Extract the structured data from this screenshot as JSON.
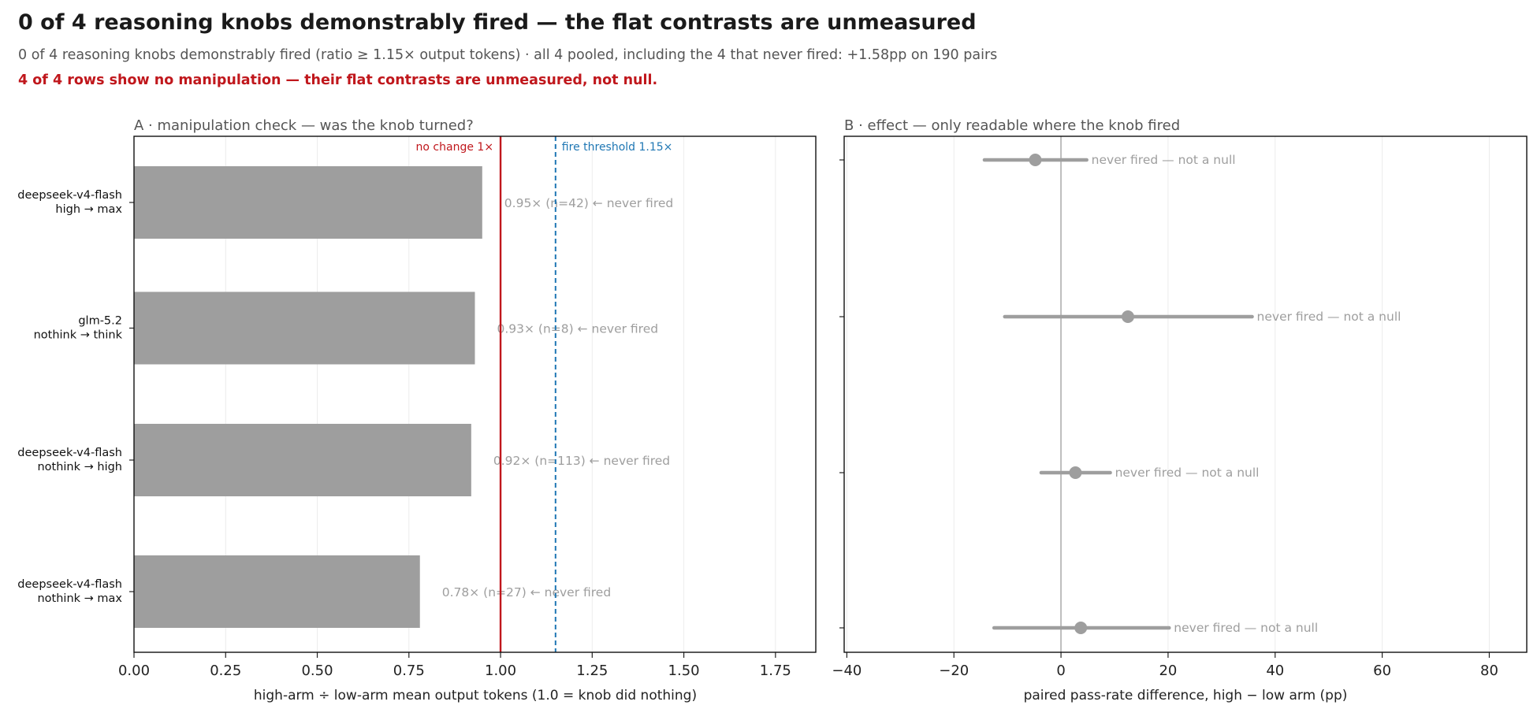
{
  "header": {
    "title": "0 of 4 reasoning knobs demonstrably fired — the flat contrasts are unmeasured",
    "subtitle": "0 of 4 reasoning knobs demonstrably fired (ratio ≥ 1.15× output tokens) · all 4 pooled, including the 4 that never fired: +1.58pp on 190 pairs",
    "warning": "4 of 4 rows show no manipulation — their flat contrasts are unmeasured, not null."
  },
  "colors": {
    "bar": "#9e9e9e",
    "annotation": "#9e9e9e",
    "reference_line": "#c0171c",
    "threshold_line": "#1f77b4",
    "warning_text": "#c0171c"
  },
  "chart_data": [
    {
      "type": "bar",
      "orientation": "horizontal",
      "title": "A · manipulation check — was the knob turned?",
      "xlabel": "high-arm ÷ low-arm mean output tokens (1.0 = knob did nothing)",
      "xlim": [
        0,
        1.86
      ],
      "xticks": [
        0,
        0.25,
        0.5,
        0.75,
        1.0,
        1.25,
        1.5,
        1.75
      ],
      "xtick_labels": [
        "0.00",
        "0.25",
        "0.50",
        "0.75",
        "1.00",
        "1.25",
        "1.50",
        "1.75"
      ],
      "grid": "vertical",
      "categories": [
        [
          "deepseek-v4-flash",
          "high → max"
        ],
        [
          "glm-5.2",
          "nothink → think"
        ],
        [
          "deepseek-v4-flash",
          "nothink → high"
        ],
        [
          "deepseek-v4-flash",
          "nothink → max"
        ]
      ],
      "values": [
        0.95,
        0.93,
        0.92,
        0.78
      ],
      "bar_labels": [
        "0.95×  (n=42)  ← never fired",
        "0.93×  (n=8)  ← never fired",
        "0.92×  (n=113)  ← never fired",
        "0.78×  (n=27)  ← never fired"
      ],
      "reference_lines": [
        {
          "x": 1.0,
          "label": "no change 1×",
          "style": "solid"
        },
        {
          "x": 1.15,
          "label": "fire threshold 1.15×",
          "style": "dashed"
        }
      ]
    },
    {
      "type": "scatter",
      "subtype": "point-with-interval",
      "title": "B · effect — only readable where the knob fired",
      "xlabel": "paired pass-rate difference, high − low arm (pp)",
      "xlim": [
        -40.5,
        87
      ],
      "xticks": [
        -40,
        -20,
        0,
        20,
        40,
        60,
        80
      ],
      "xtick_labels": [
        "−40",
        "−20",
        "0",
        "20",
        "40",
        "60",
        "80"
      ],
      "grid": "vertical",
      "zero_line": 0,
      "points": [
        {
          "est": -4.8,
          "lo": -14.3,
          "hi": 4.8,
          "label": "never fired — not a null"
        },
        {
          "est": 12.5,
          "lo": -10.5,
          "hi": 35.7,
          "label": "never fired — not a null"
        },
        {
          "est": 2.7,
          "lo": -3.7,
          "hi": 9.2,
          "label": "never fired — not a null"
        },
        {
          "est": 3.7,
          "lo": -12.5,
          "hi": 20.2,
          "label": "never fired — not a null"
        }
      ]
    }
  ]
}
